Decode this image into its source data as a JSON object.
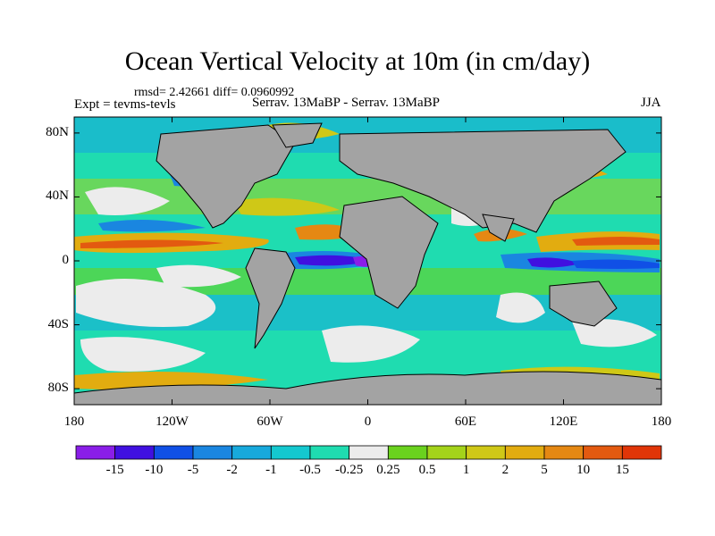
{
  "header": {
    "title": "Ocean Vertical Velocity at 10m (in cm/day)",
    "stats": "rmsd= 2.42661 diff= 0.0960992",
    "experiment": "Expt = tevms-tevls",
    "cases": "Serrav.  13MaBP - Serrav.  13MaBP",
    "season": "JJA"
  },
  "map": {
    "projection": "cylindrical equidistant",
    "land_color": "#a3a3a3",
    "coastline_color": "#000000",
    "lat_ticks": [
      "80N",
      "40N",
      "0",
      "40S",
      "80S"
    ],
    "lon_ticks": [
      "180",
      "120W",
      "60W",
      "0",
      "60E",
      "120E",
      "180"
    ]
  },
  "colorbar": {
    "colors": [
      "#8a1ee8",
      "#4010e0",
      "#1050e6",
      "#1a86e0",
      "#17a9dc",
      "#14c8cf",
      "#1fdcb0",
      "#ececec",
      "#6ad21e",
      "#a4d31a",
      "#cfc817",
      "#e2ac10",
      "#e58813",
      "#e35a10",
      "#e03508"
    ],
    "labels": [
      "-15",
      "-10",
      "-5",
      "-2",
      "-1",
      "-0.5",
      "-0.25",
      "0.25",
      "0.5",
      "1",
      "2",
      "5",
      "10",
      "15"
    ]
  }
}
